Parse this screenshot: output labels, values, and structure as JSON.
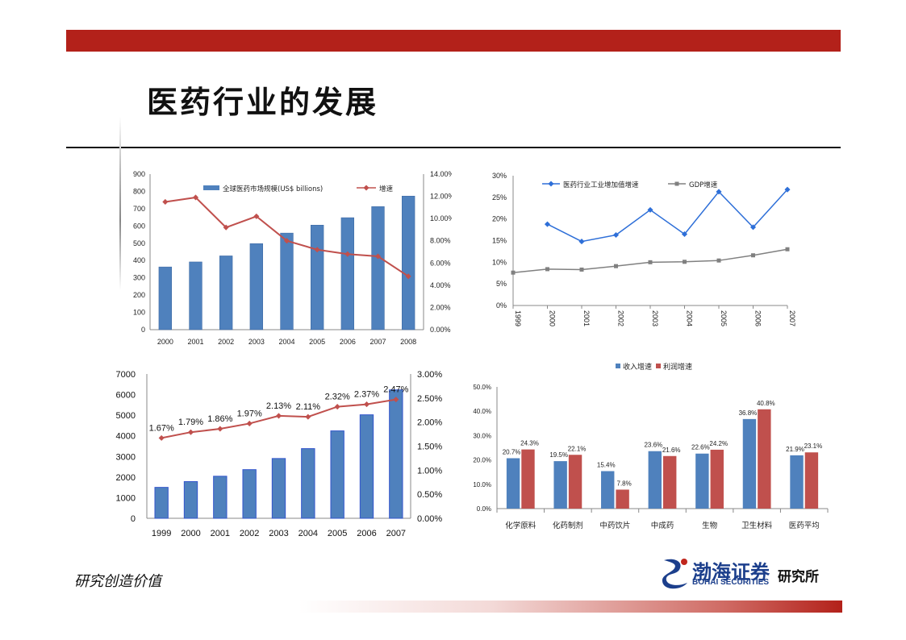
{
  "page": {
    "title": "医药行业的发展",
    "slogan": "研究创造价值",
    "logo": {
      "name_cn": "渤海证券",
      "name_en": "BOHAI SECURITIES",
      "institute": "研究所"
    }
  },
  "colors": {
    "brand_red": "#b3211a",
    "bar_blue": "#4f81bd",
    "line_red": "#c0504d",
    "line_blue": "#2e6fd8",
    "line_gray": "#808080"
  },
  "chart_data": [
    {
      "type": "bar",
      "categories": [
        "2000",
        "2001",
        "2002",
        "2003",
        "2004",
        "2005",
        "2006",
        "2007",
        "2008"
      ],
      "series": [
        {
          "name": "全球医药市场规模(US$ billions)",
          "type": "bar",
          "axis": "left",
          "values": [
            363,
            392,
            427,
            498,
            559,
            605,
            648,
            712,
            773
          ]
        },
        {
          "name": "增速",
          "type": "line",
          "axis": "right",
          "values": [
            11.5,
            11.9,
            9.2,
            10.2,
            8.0,
            7.2,
            6.8,
            6.6,
            4.8
          ]
        }
      ],
      "left_axis": {
        "ylim": [
          0,
          900
        ],
        "ticks": [
          "0",
          "100",
          "200",
          "300",
          "400",
          "500",
          "600",
          "700",
          "800",
          "900"
        ]
      },
      "right_axis": {
        "ylim": [
          0,
          14
        ],
        "ticks": [
          "0.00%",
          "2.00%",
          "4.00%",
          "6.00%",
          "8.00%",
          "10.00%",
          "12.00%",
          "14.00%"
        ]
      },
      "legend": "top"
    },
    {
      "type": "line",
      "categories": [
        "1999",
        "2000",
        "2001",
        "2002",
        "2003",
        "2004",
        "2005",
        "2006",
        "2007"
      ],
      "series": [
        {
          "name": "医药行业工业增加值增速",
          "values": [
            null,
            18.8,
            14.8,
            16.3,
            22.1,
            16.5,
            26.3,
            18.1,
            26.8
          ]
        },
        {
          "name": "GDP增速",
          "values": [
            7.6,
            8.4,
            8.3,
            9.1,
            10.0,
            10.1,
            10.4,
            11.6,
            13.0
          ]
        }
      ],
      "ylim": [
        0,
        30
      ],
      "yticks": [
        "0%",
        "5%",
        "10%",
        "15%",
        "20%",
        "25%",
        "30%"
      ],
      "legend": "top"
    },
    {
      "type": "bar",
      "categories": [
        "1999",
        "2000",
        "2001",
        "2002",
        "2003",
        "2004",
        "2005",
        "2006",
        "2007"
      ],
      "series": [
        {
          "type": "bar",
          "axis": "left",
          "values": [
            1500,
            1780,
            2040,
            2360,
            2900,
            3380,
            4240,
            5020,
            6230
          ]
        },
        {
          "type": "line",
          "axis": "right",
          "values": [
            1.67,
            1.79,
            1.86,
            1.97,
            2.13,
            2.11,
            2.32,
            2.37,
            2.47
          ],
          "labels": [
            "1.67%",
            "1.79%",
            "1.86%",
            "1.97%",
            "2.13%",
            "2.11%",
            "2.32%",
            "2.37%",
            "2.47%"
          ]
        }
      ],
      "left_axis": {
        "ylim": [
          0,
          7000
        ],
        "ticks": [
          "0",
          "1000",
          "2000",
          "3000",
          "4000",
          "5000",
          "6000",
          "7000"
        ]
      },
      "right_axis": {
        "ylim": [
          0,
          3
        ],
        "ticks": [
          "0.00%",
          "0.50%",
          "1.00%",
          "1.50%",
          "2.00%",
          "2.50%",
          "3.00%"
        ]
      }
    },
    {
      "type": "bar",
      "categories": [
        "化学原料",
        "化药制剂",
        "中药饮片",
        "中成药",
        "生物",
        "卫生材料",
        "医药平均"
      ],
      "series": [
        {
          "name": "收入增速",
          "values": [
            20.7,
            19.5,
            15.4,
            23.6,
            22.6,
            36.8,
            21.9
          ],
          "labels": [
            "20.7%",
            "19.5%",
            "15.4%",
            "23.6%",
            "22.6%",
            "36.8%",
            "21.9%"
          ]
        },
        {
          "name": "利润增速",
          "values": [
            24.3,
            22.1,
            7.8,
            21.6,
            24.2,
            40.8,
            23.1
          ],
          "labels": [
            "24.3%",
            "22.1%",
            "7.8%",
            "21.6%",
            "24.2%",
            "40.8%",
            "23.1%"
          ]
        }
      ],
      "ylim": [
        0,
        50
      ],
      "yticks": [
        "0.0%",
        "10.0%",
        "20.0%",
        "30.0%",
        "40.0%",
        "50.0%"
      ],
      "legend": "top"
    }
  ]
}
